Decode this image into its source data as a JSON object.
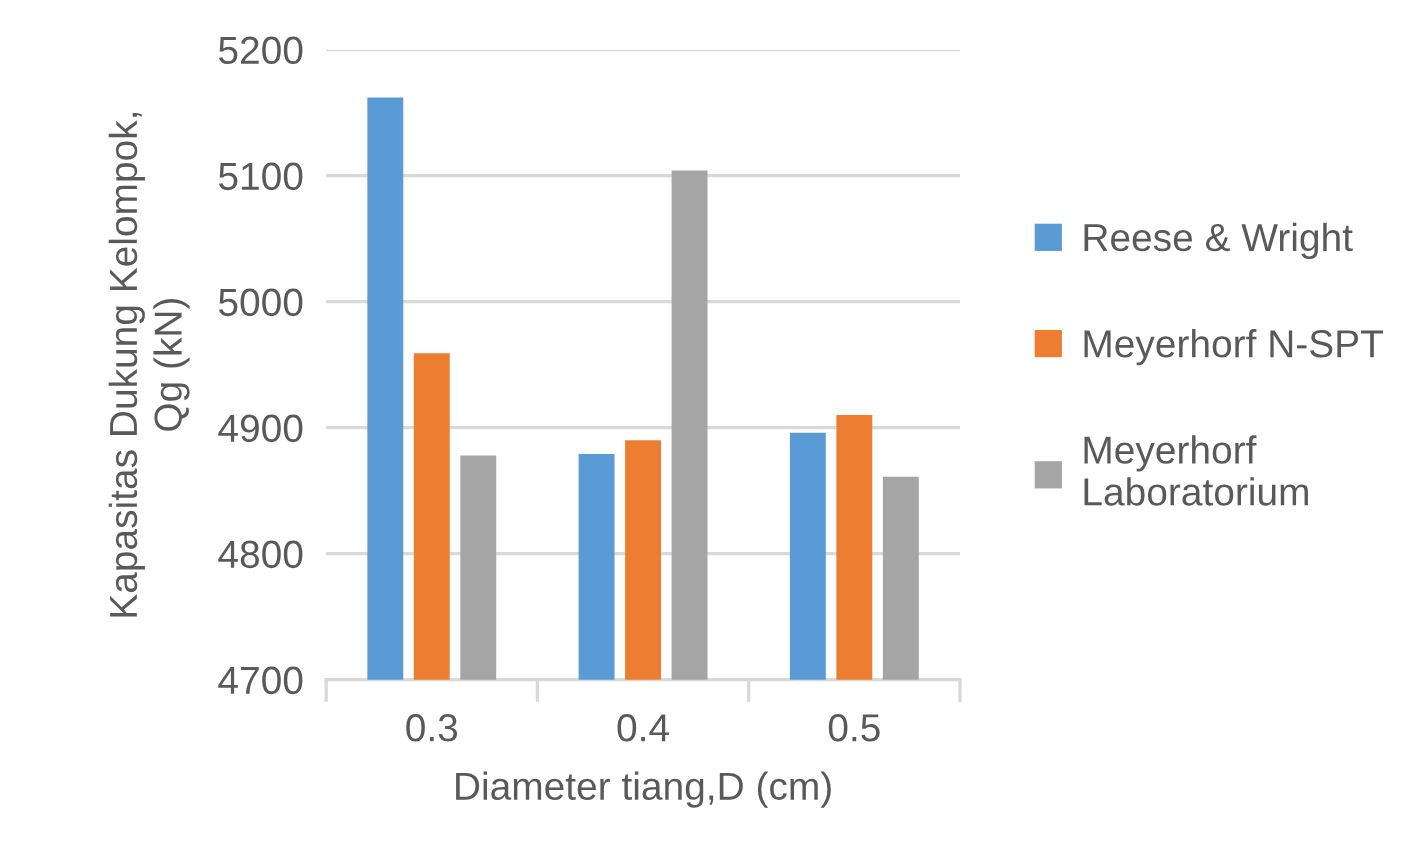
{
  "chart_data": {
    "type": "bar",
    "xlabel": "Diameter tiang,D (cm)",
    "ylabel": "Kapasitas Dukung Kelompok,\nQg (kN)",
    "categories": [
      "0.3",
      "0.4",
      "0.5"
    ],
    "series": [
      {
        "name": "Reese & Wright",
        "color": "#5b9bd5",
        "values": [
          5162,
          4879,
          4896
        ]
      },
      {
        "name": "Meyerhorf N-SPT",
        "color": "#ed7d31",
        "values": [
          4959,
          4890,
          4910
        ]
      },
      {
        "name": "Meyerhorf\nLaboratorium",
        "color": "#a5a5a5",
        "values": [
          4878,
          5104,
          4861
        ]
      }
    ],
    "ylim": [
      4700,
      5200
    ],
    "yticks": [
      4700,
      4800,
      4900,
      5000,
      5100,
      5200
    ],
    "grid": "y",
    "legend": "right"
  }
}
